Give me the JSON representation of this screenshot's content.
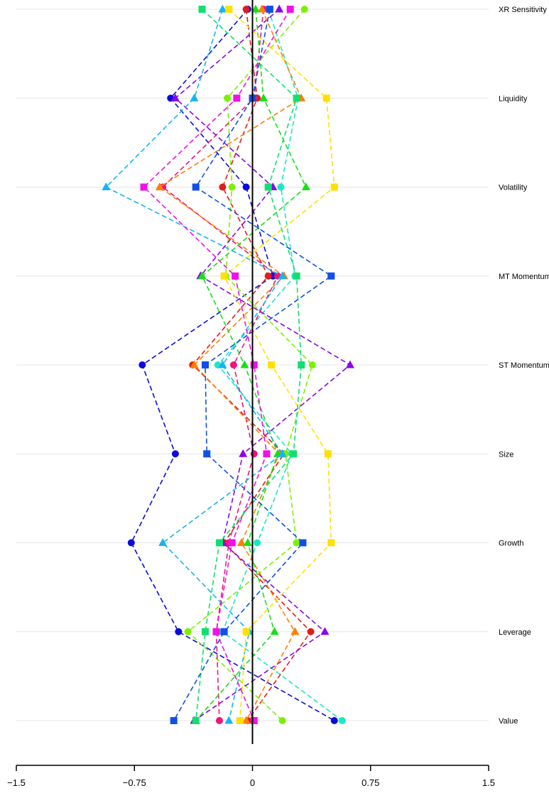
{
  "chart_data": {
    "type": "line",
    "title": "",
    "xlabel": "",
    "ylabel": "",
    "xlim": [
      -1.5,
      1.5
    ],
    "x_ticks": [
      -1.5,
      -0.75,
      0,
      0.75,
      1.5
    ],
    "x_tick_labels": [
      "−1.5",
      "−0.75",
      "0",
      "0.75",
      "1.5"
    ],
    "categories": [
      "XR Sensitivity",
      "Liquidity",
      "Volatility",
      "MT Momentum",
      "ST Momentum",
      "Size",
      "Growth",
      "Leverage",
      "Value"
    ],
    "grid": "horizontal",
    "legend": "none",
    "zero_line": true,
    "series": [
      {
        "color": "#0b0bdc",
        "marker": "circle",
        "values": [
          -0.03,
          -0.52,
          -0.04,
          0.13,
          -0.7,
          -0.49,
          -0.77,
          -0.47,
          0.52
        ]
      },
      {
        "color": "#e01c1c",
        "marker": "circle",
        "values": [
          -0.04,
          0.03,
          -0.19,
          0.1,
          -0.38,
          0.2,
          -0.18,
          0.37,
          -0.03
        ]
      },
      {
        "color": "#7cf000",
        "marker": "circle",
        "values": [
          0.33,
          -0.16,
          -0.13,
          -0.17,
          0.38,
          0.21,
          0.28,
          -0.41,
          0.19
        ]
      },
      {
        "color": "#1ae8c8",
        "marker": "circle",
        "values": [
          0.1,
          0.29,
          0.18,
          0.27,
          -0.22,
          0.25,
          0.03,
          -0.19,
          0.57
        ]
      },
      {
        "color": "#f0147a",
        "marker": "circle",
        "values": [
          0.07,
          0.01,
          -0.57,
          0.16,
          -0.12,
          0.01,
          -0.15,
          -0.23,
          -0.21
        ]
      },
      {
        "color": "#8a06e8",
        "marker": "triangle",
        "values": [
          0.17,
          -0.49,
          0.13,
          -0.33,
          0.62,
          -0.06,
          -0.19,
          0.46,
          -0.37
        ]
      },
      {
        "color": "#ff7f00",
        "marker": "triangle",
        "values": [
          0.06,
          0.31,
          -0.59,
          0.2,
          -0.37,
          0.17,
          -0.07,
          0.27,
          -0.04
        ]
      },
      {
        "color": "#16e016",
        "marker": "triangle",
        "values": [
          0.02,
          0.07,
          0.34,
          -0.32,
          -0.05,
          0.16,
          -0.03,
          0.14,
          -0.36
        ]
      },
      {
        "color": "#16b4f0",
        "marker": "triangle",
        "values": [
          -0.19,
          -0.37,
          -0.93,
          0.19,
          -0.19,
          0.19,
          -0.57,
          -0.02,
          -0.15
        ]
      },
      {
        "color": "#ffe000",
        "marker": "square",
        "values": [
          -0.15,
          0.47,
          0.52,
          -0.18,
          0.12,
          0.48,
          0.5,
          -0.04,
          -0.08
        ]
      },
      {
        "color": "#f010e8",
        "marker": "square",
        "values": [
          0.24,
          -0.1,
          -0.69,
          -0.11,
          0.01,
          0.09,
          -0.13,
          -0.23,
          0.01
        ]
      },
      {
        "color": "#10e070",
        "marker": "square",
        "values": [
          -0.32,
          0.28,
          0.1,
          0.28,
          0.31,
          0.26,
          -0.21,
          -0.3,
          -0.36
        ]
      },
      {
        "color": "#1050e8",
        "marker": "square",
        "values": [
          0.11,
          0.0,
          -0.36,
          0.5,
          -0.3,
          -0.29,
          0.32,
          -0.18,
          -0.5
        ]
      }
    ]
  }
}
